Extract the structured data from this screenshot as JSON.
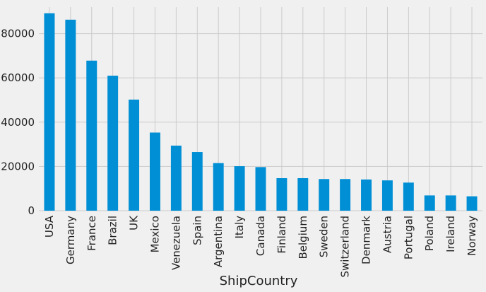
{
  "chart_data": {
    "type": "bar",
    "title": "",
    "xlabel": "ShipCountry",
    "ylabel": "",
    "categories": [
      "USA",
      "Germany",
      "France",
      "Brazil",
      "UK",
      "Mexico",
      "Venezuela",
      "Spain",
      "Argentina",
      "Italy",
      "Canada",
      "Finland",
      "Belgium",
      "Sweden",
      "Switzerland",
      "Denmark",
      "Austria",
      "Portugal",
      "Poland",
      "Ireland",
      "Norway"
    ],
    "values": [
      89200,
      86300,
      67800,
      61000,
      50200,
      35300,
      29400,
      26500,
      21500,
      20100,
      19700,
      14700,
      14700,
      14300,
      14300,
      14100,
      13700,
      12700,
      6900,
      6900,
      6500
    ],
    "ylim": [
      0,
      92000
    ],
    "yticks": [
      0,
      20000,
      40000,
      60000,
      80000
    ],
    "bar_color": "#008fd5",
    "background_color": "#f0f0f0",
    "grid_color": "#cbcbcb",
    "grid": true,
    "legend": false
  }
}
